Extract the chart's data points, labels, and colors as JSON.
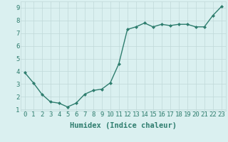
{
  "x": [
    0,
    1,
    2,
    3,
    4,
    5,
    6,
    7,
    8,
    9,
    10,
    11,
    12,
    13,
    14,
    15,
    16,
    17,
    18,
    19,
    20,
    21,
    22,
    23
  ],
  "y": [
    3.9,
    3.1,
    2.2,
    1.6,
    1.5,
    1.2,
    1.5,
    2.2,
    2.5,
    2.6,
    3.1,
    4.6,
    7.3,
    7.5,
    7.8,
    7.5,
    7.7,
    7.6,
    7.7,
    7.7,
    7.5,
    7.5,
    8.4,
    9.1
  ],
  "xlabel": "Humidex (Indice chaleur)",
  "ylim": [
    0.9,
    9.5
  ],
  "xlim": [
    -0.5,
    23.5
  ],
  "yticks": [
    1,
    2,
    3,
    4,
    5,
    6,
    7,
    8,
    9
  ],
  "xticks": [
    0,
    1,
    2,
    3,
    4,
    5,
    6,
    7,
    8,
    9,
    10,
    11,
    12,
    13,
    14,
    15,
    16,
    17,
    18,
    19,
    20,
    21,
    22,
    23
  ],
  "line_color": "#2e7d6e",
  "marker": "D",
  "marker_size": 2.0,
  "background_color": "#daf0f0",
  "grid_color": "#c0d8d8",
  "xlabel_fontsize": 7.5,
  "tick_fontsize": 6.5,
  "linewidth": 1.0
}
